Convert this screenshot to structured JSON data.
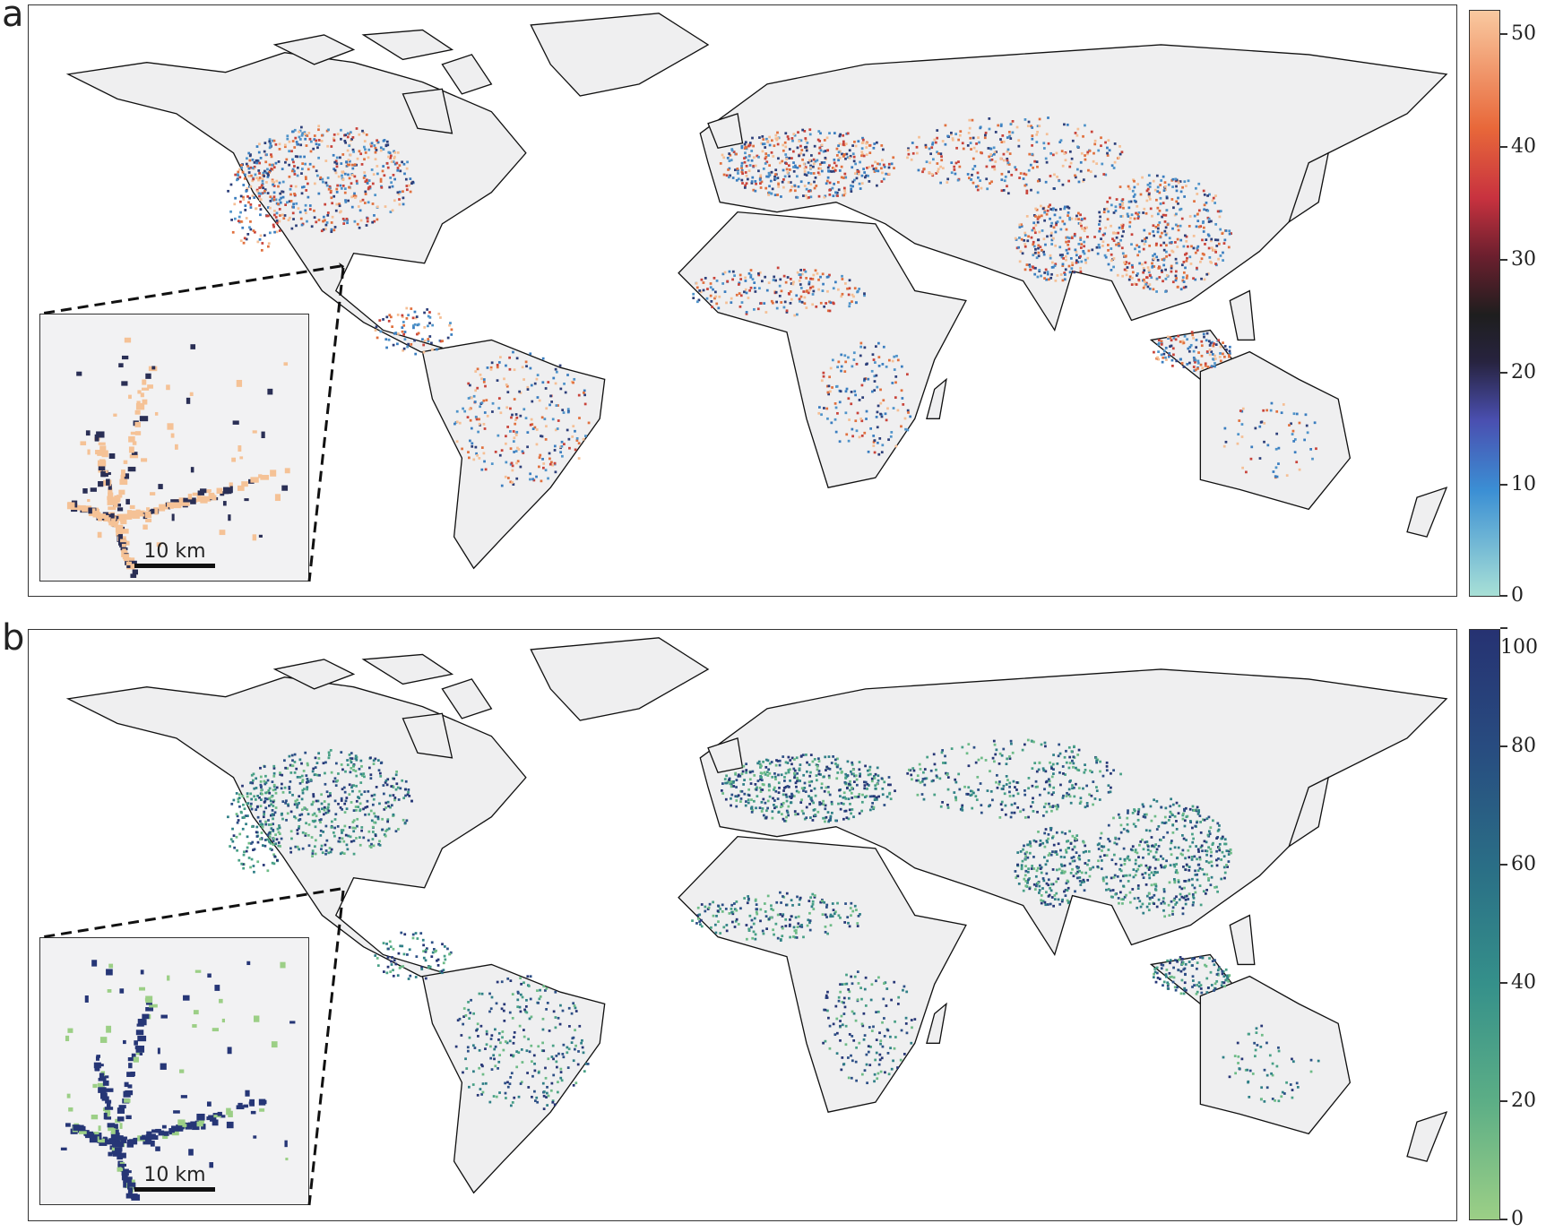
{
  "panels": [
    {
      "label": "a",
      "colorbar": {
        "ticks": [
          "0",
          "10",
          "20",
          "30",
          "40",
          "50"
        ],
        "range": [
          0,
          50
        ],
        "extend": "max",
        "colors": [
          "#a8e0d6",
          "#3b8fd4",
          "#4a4fb0",
          "#27233f",
          "#1e1e1e",
          "#6b1f2e",
          "#c8323f",
          "#e8683a",
          "#f9c9a0"
        ]
      },
      "point_colors": [
        "#4f93c9",
        "#3a7dbf",
        "#e0703e",
        "#c8433a",
        "#f5bf95",
        "#2d3f7a"
      ],
      "inset": {
        "scale_label": "10 km",
        "dominant_color": "#f5c296",
        "secondary_color": "#2a2f55"
      }
    },
    {
      "label": "b",
      "colorbar": {
        "ticks": [
          "0",
          "20",
          "40",
          "60",
          "80",
          "100"
        ],
        "range": [
          0,
          100
        ],
        "colors": [
          "#9ccf86",
          "#5cae86",
          "#35908a",
          "#2a6e86",
          "#284c80",
          "#263272"
        ]
      },
      "point_colors": [
        "#263676",
        "#2c4f86",
        "#2f7f86",
        "#48a086",
        "#6dbb87"
      ],
      "inset": {
        "scale_label": "10 km",
        "dominant_color": "#263676",
        "secondary_color": "#9ccf86"
      }
    }
  ],
  "land_color": "#efeff0",
  "coastline_color": "#111111"
}
